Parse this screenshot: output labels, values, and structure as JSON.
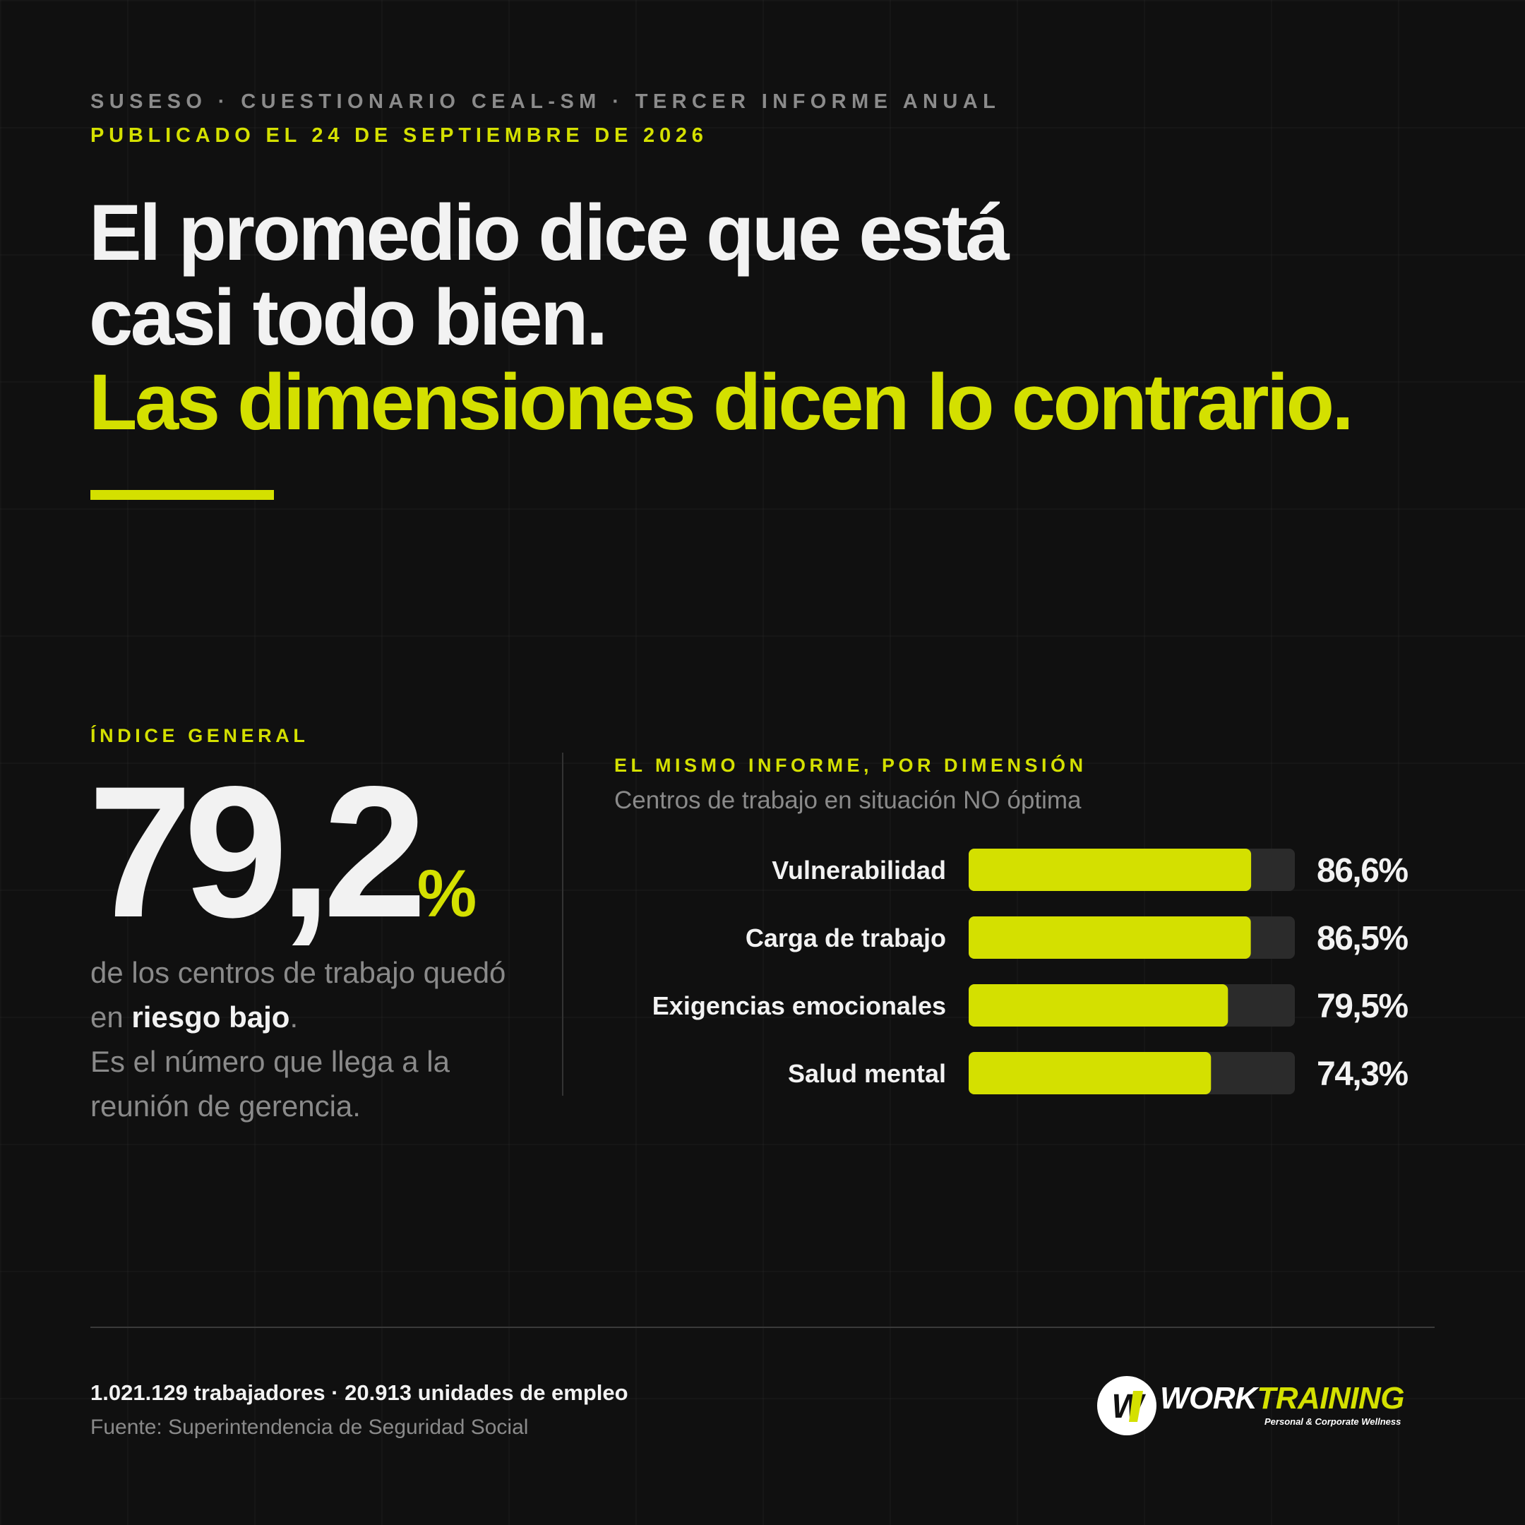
{
  "header": {
    "kicker": "SUSESO · CUESTIONARIO CEAL-SM · TERCER INFORME ANUAL",
    "date": "PUBLICADO EL 24 DE SEPTIEMBRE DE 2026"
  },
  "headline": {
    "line1": "El promedio dice que está",
    "line2": "casi todo bien.",
    "line3": "Las dimensiones dicen lo contrario."
  },
  "index": {
    "label": "ÍNDICE GENERAL",
    "value": "79,2",
    "unit": "%",
    "desc_a": "de los centros de trabajo quedó en ",
    "desc_strong": "riesgo bajo",
    "desc_b": ".",
    "desc_c": "Es el número que llega a la reunión de gerencia."
  },
  "dimensions": {
    "label": "EL MISMO INFORME, POR DIMENSIÓN",
    "subtitle": "Centros de trabajo en situación NO óptima"
  },
  "chart_data": {
    "type": "bar",
    "orientation": "horizontal",
    "categories": [
      "Vulnerabilidad",
      "Carga de trabajo",
      "Exigencias emocionales",
      "Salud mental"
    ],
    "values": [
      86.6,
      86.5,
      79.5,
      74.3
    ],
    "value_labels": [
      "86,6%",
      "86,5%",
      "79,5%",
      "74,3%"
    ],
    "xlim": [
      0,
      100
    ],
    "bar_color": "#d4e000",
    "track_color": "#2b2b2b"
  },
  "footer": {
    "stats": "1.021.129 trabajadores · 20.913 unidades de empleo",
    "source": "Fuente: Superintendencia de Seguridad Social"
  },
  "logo": {
    "word1": "WORK",
    "word2": "TRAINING",
    "tagline": "Personal & Corporate Wellness",
    "mark": "WT"
  },
  "colors": {
    "background": "#101010",
    "accent": "#d4e000",
    "text": "#f2f2f2",
    "muted": "#8a8a8a"
  }
}
